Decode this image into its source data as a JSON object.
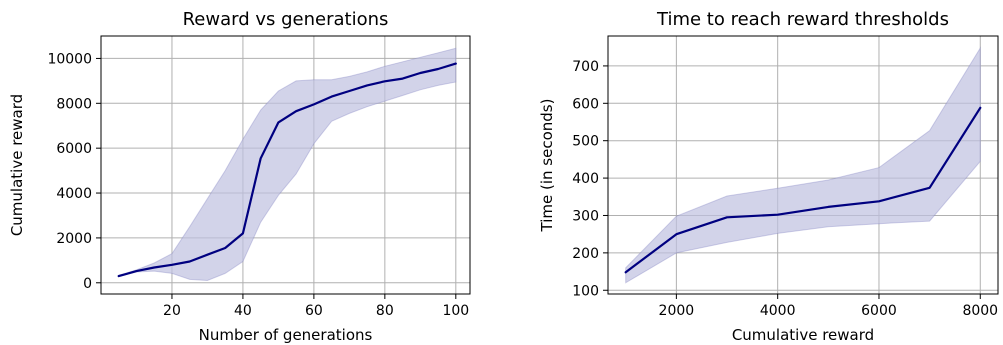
{
  "chart_data": [
    {
      "type": "line",
      "title": "Reward vs generations",
      "xlabel": "Number of generations",
      "ylabel": "Cumulative reward",
      "xlim": [
        0,
        104
      ],
      "ylim": [
        -500,
        11000
      ],
      "xticks": [
        20,
        40,
        60,
        80,
        100
      ],
      "yticks": [
        0,
        2000,
        4000,
        6000,
        8000,
        10000
      ],
      "grid": true,
      "x": [
        5,
        10,
        15,
        20,
        25,
        30,
        35,
        40,
        45,
        50,
        55,
        60,
        65,
        70,
        75,
        80,
        85,
        90,
        95,
        100
      ],
      "series": [
        {
          "values": [
            300,
            520,
            680,
            800,
            950,
            1250,
            1550,
            2200,
            5550,
            7150,
            7650,
            7950,
            8300,
            8550,
            8800,
            8980,
            9100,
            9350,
            9530,
            9770
          ],
          "lower": [
            280,
            480,
            520,
            420,
            150,
            100,
            420,
            950,
            2700,
            3900,
            4850,
            6200,
            7200,
            7550,
            7850,
            8100,
            8350,
            8600,
            8800,
            8950
          ],
          "upper": [
            330,
            580,
            880,
            1300,
            2500,
            3750,
            5000,
            6400,
            7700,
            8550,
            9000,
            9050,
            9050,
            9200,
            9400,
            9650,
            9850,
            10050,
            10250,
            10450
          ],
          "color": "#000080",
          "band_color": "#bfc0e0"
        }
      ]
    },
    {
      "type": "line",
      "title": "Time to reach reward thresholds",
      "xlabel": "Cumulative reward",
      "ylabel": "Time (in seconds)",
      "xlim": [
        650,
        8350
      ],
      "ylim": [
        90,
        780
      ],
      "xticks": [
        2000,
        4000,
        6000,
        8000
      ],
      "yticks": [
        100,
        200,
        300,
        400,
        500,
        600,
        700
      ],
      "grid": true,
      "x": [
        1000,
        2000,
        3000,
        4000,
        5000,
        6000,
        7000,
        8000
      ],
      "series": [
        {
          "values": [
            148,
            250,
            295,
            302,
            323,
            338,
            374,
            588
          ],
          "lower": [
            120,
            200,
            228,
            252,
            270,
            278,
            285,
            445
          ],
          "upper": [
            160,
            298,
            352,
            373,
            395,
            428,
            527,
            748
          ],
          "color": "#000080",
          "band_color": "#bfc0e0"
        }
      ]
    }
  ]
}
